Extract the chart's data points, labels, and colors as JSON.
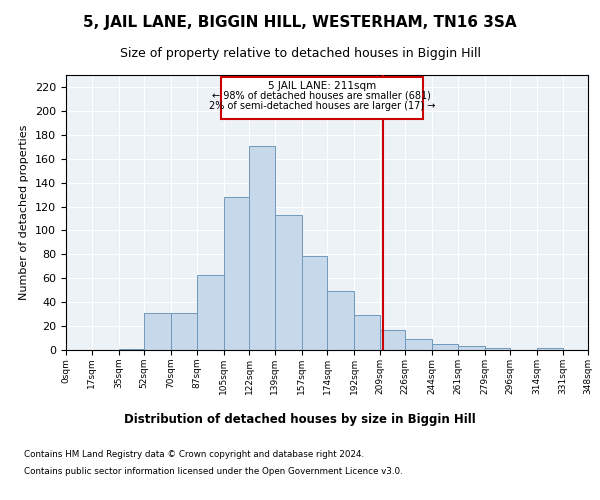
{
  "title": "5, JAIL LANE, BIGGIN HILL, WESTERHAM, TN16 3SA",
  "subtitle": "Size of property relative to detached houses in Biggin Hill",
  "xlabel_hist": "Distribution of detached houses by size in Biggin Hill",
  "ylabel": "Number of detached properties",
  "bar_color": "#c8d8eb",
  "bar_edge_color": "#7099bb",
  "background_color": "#edf2f7",
  "grid_color": "#ffffff",
  "property_line_x": 211,
  "property_label": "5 JAIL LANE: 211sqm",
  "annotation_line1": "← 98% of detached houses are smaller (681)",
  "annotation_line2": "2% of semi-detached houses are larger (17) →",
  "bin_edges": [
    0,
    17,
    35,
    52,
    70,
    87,
    105,
    122,
    139,
    157,
    174,
    192,
    209,
    226,
    244,
    261,
    279,
    296,
    314,
    331,
    348
  ],
  "bar_heights": [
    0,
    0,
    1,
    31,
    31,
    63,
    128,
    171,
    113,
    79,
    49,
    29,
    17,
    9,
    5,
    3,
    2,
    0,
    2,
    0
  ],
  "yticks": [
    0,
    20,
    40,
    60,
    80,
    100,
    120,
    140,
    160,
    180,
    200,
    220
  ],
  "ylim": [
    0,
    230
  ],
  "xlim": [
    0,
    348
  ],
  "footnote1": "Contains HM Land Registry data © Crown copyright and database right 2024.",
  "footnote2": "Contains public sector information licensed under the Open Government Licence v3.0.",
  "fig_bg": "#ffffff",
  "title_fontsize": 11,
  "subtitle_fontsize": 9,
  "ylabel_fontsize": 8,
  "xtick_fontsize": 6.5,
  "ytick_fontsize": 8
}
